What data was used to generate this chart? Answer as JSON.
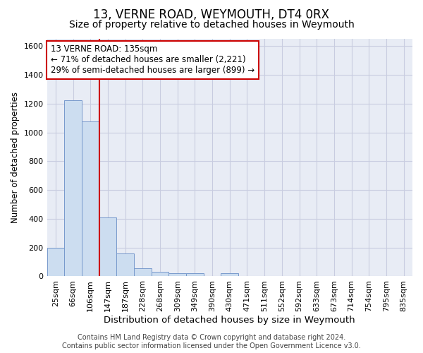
{
  "title": "13, VERNE ROAD, WEYMOUTH, DT4 0RX",
  "subtitle": "Size of property relative to detached houses in Weymouth",
  "xlabel": "Distribution of detached houses by size in Weymouth",
  "ylabel": "Number of detached properties",
  "bar_labels": [
    "25sqm",
    "66sqm",
    "106sqm",
    "147sqm",
    "187sqm",
    "228sqm",
    "268sqm",
    "309sqm",
    "349sqm",
    "390sqm",
    "430sqm",
    "471sqm",
    "511sqm",
    "552sqm",
    "592sqm",
    "633sqm",
    "673sqm",
    "714sqm",
    "754sqm",
    "795sqm",
    "835sqm"
  ],
  "bar_values": [
    200,
    1225,
    1075,
    410,
    160,
    55,
    30,
    20,
    20,
    0,
    20,
    0,
    0,
    0,
    0,
    0,
    0,
    0,
    0,
    0,
    0
  ],
  "bar_color": "#ccddf0",
  "bar_edge_color": "#7799cc",
  "vline_x_index": 3,
  "vline_color": "#cc0000",
  "annotation_text": "13 VERNE ROAD: 135sqm\n← 71% of detached houses are smaller (2,221)\n29% of semi-detached houses are larger (899) →",
  "annotation_box_color": "#ffffff",
  "annotation_box_edge": "#cc0000",
  "ylim": [
    0,
    1650
  ],
  "yticks": [
    0,
    200,
    400,
    600,
    800,
    1000,
    1200,
    1400,
    1600
  ],
  "grid_color": "#c8cce0",
  "bg_color": "#e8ecf5",
  "footer": "Contains HM Land Registry data © Crown copyright and database right 2024.\nContains public sector information licensed under the Open Government Licence v3.0.",
  "title_fontsize": 12,
  "subtitle_fontsize": 10,
  "xlabel_fontsize": 9.5,
  "ylabel_fontsize": 8.5,
  "tick_fontsize": 8,
  "ann_fontsize": 8.5,
  "footer_fontsize": 7
}
